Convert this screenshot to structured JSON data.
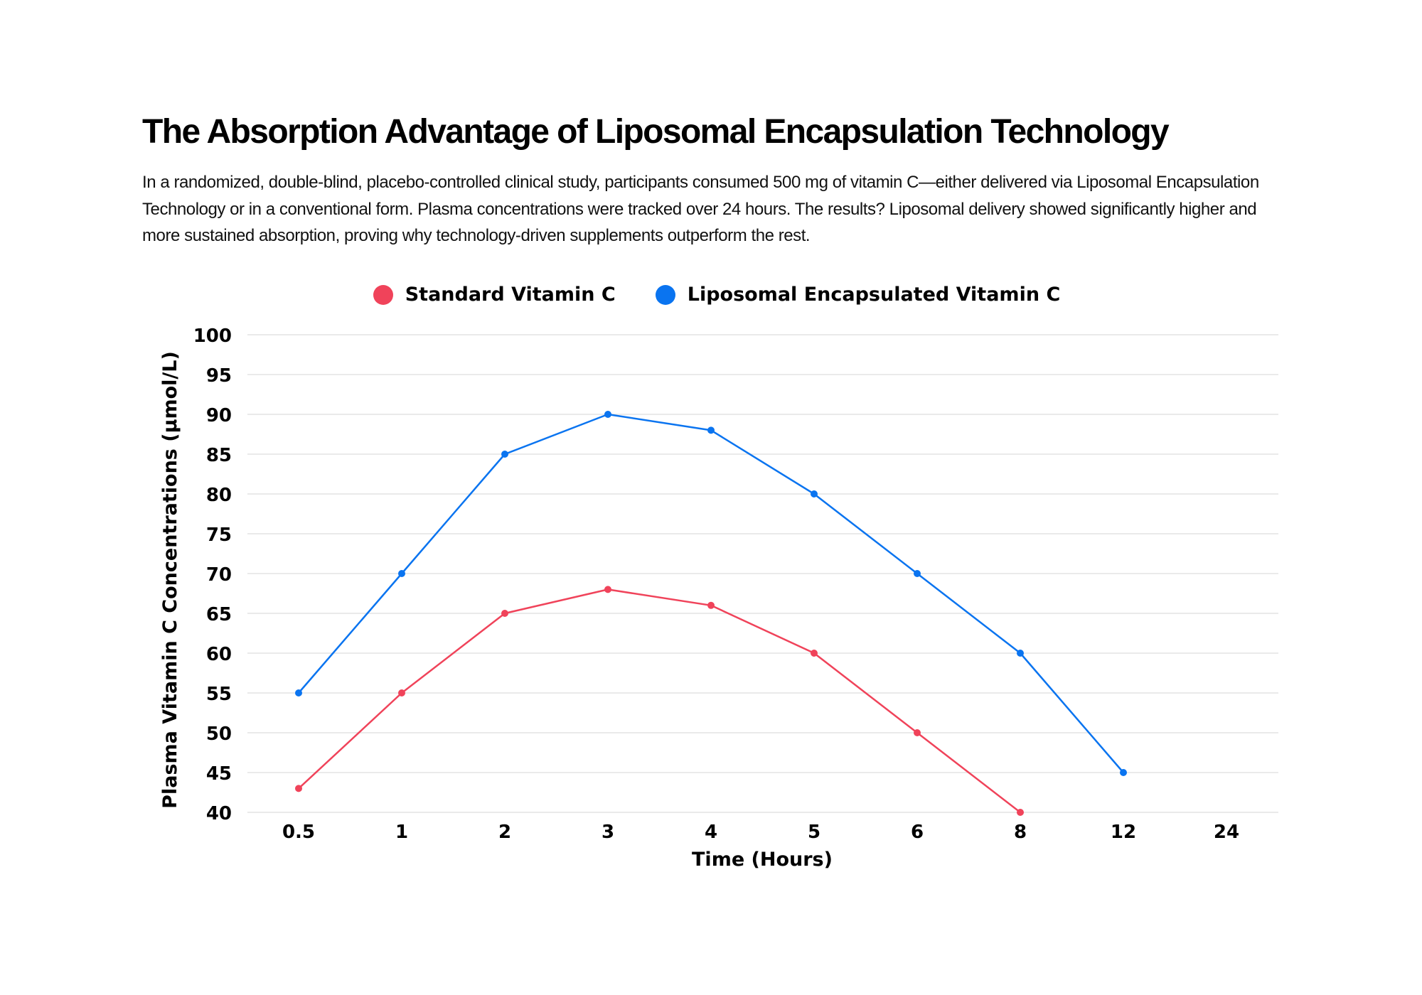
{
  "header": {
    "title": "The Absorption Advantage of Liposomal Encapsulation Technology",
    "description": "In a randomized, double-blind, placebo-controlled clinical study, participants consumed 500 mg of vitamin C—either delivered via Liposomal Encapsulation Technology or in a conventional form. Plasma concentrations were tracked over 24 hours. The results? Liposomal delivery showed significantly higher and more sustained absorption, proving why technology-driven supplements outperform the rest."
  },
  "chart_data": {
    "type": "line",
    "categories": [
      "0.5",
      "1",
      "2",
      "3",
      "4",
      "5",
      "6",
      "8",
      "12",
      "24"
    ],
    "series": [
      {
        "name": "Standard Vitamin C",
        "color": "#F0435A",
        "values": [
          43,
          55,
          65,
          68,
          66,
          60,
          50,
          40,
          null,
          null
        ]
      },
      {
        "name": "Liposomal Encapsulated Vitamin C",
        "color": "#0A74F0",
        "values": [
          55,
          70,
          85,
          90,
          88,
          80,
          70,
          60,
          45,
          null
        ]
      }
    ],
    "xlabel": "Time (Hours)",
    "ylabel": "Plasma Vitamin C Concentrations (µmol/L)",
    "ylim": [
      40,
      100
    ],
    "yticks": [
      40,
      45,
      50,
      55,
      60,
      65,
      70,
      75,
      80,
      85,
      90,
      95,
      100
    ],
    "grid": true,
    "legend_position": "top-center"
  }
}
